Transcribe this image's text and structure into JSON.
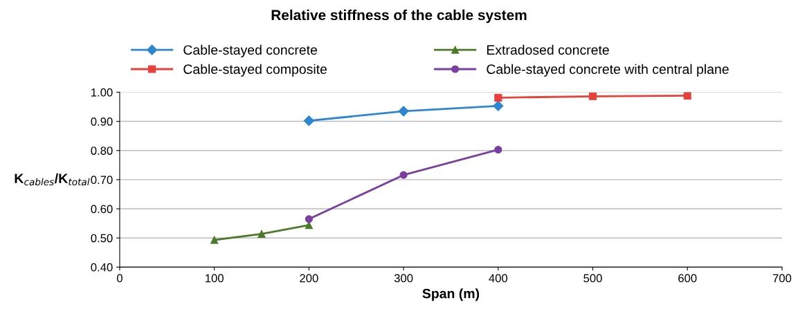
{
  "chart_data": {
    "type": "line",
    "title": "Relative stiffness of the cable system",
    "xlabel": "Span (m)",
    "ylabel": "K$_{cables}$/K$_{total}$",
    "xlim": [
      0,
      700
    ],
    "xticks": [
      0,
      100,
      200,
      300,
      400,
      500,
      600,
      700
    ],
    "ylim": [
      0.4,
      1.0
    ],
    "yticks": [
      {
        "value": 0.4,
        "label": "0.40"
      },
      {
        "value": 0.5,
        "label": "0.50"
      },
      {
        "value": 0.6,
        "label": "0.60"
      },
      {
        "value": 0.7,
        "label": "0.70"
      },
      {
        "value": 0.8,
        "label": "0.80"
      },
      {
        "value": 0.9,
        "label": "0.90"
      },
      {
        "value": 1.0,
        "label": "1.00"
      }
    ],
    "grid": "y",
    "legend": "top",
    "line_style": "solid",
    "series": [
      {
        "name": "Cable-stayed concrete",
        "color": "#2e86d0",
        "marker": "diamond",
        "x": [
          200,
          300,
          400
        ],
        "values": [
          0.902,
          0.935,
          0.953
        ]
      },
      {
        "name": "Cable-stayed composite",
        "color": "#e8413c",
        "marker": "square",
        "x": [
          400,
          500,
          600
        ],
        "values": [
          0.981,
          0.986,
          0.988
        ]
      },
      {
        "name": "Extradosed concrete",
        "color": "#4a7a2a",
        "marker": "triangle",
        "x": [
          100,
          150,
          200
        ],
        "values": [
          0.493,
          0.514,
          0.544
        ]
      },
      {
        "name": "Cable-stayed concrete with central plane",
        "color": "#7b3fa0",
        "marker": "circle",
        "x": [
          200,
          300,
          400
        ],
        "values": [
          0.565,
          0.716,
          0.803
        ]
      }
    ]
  }
}
